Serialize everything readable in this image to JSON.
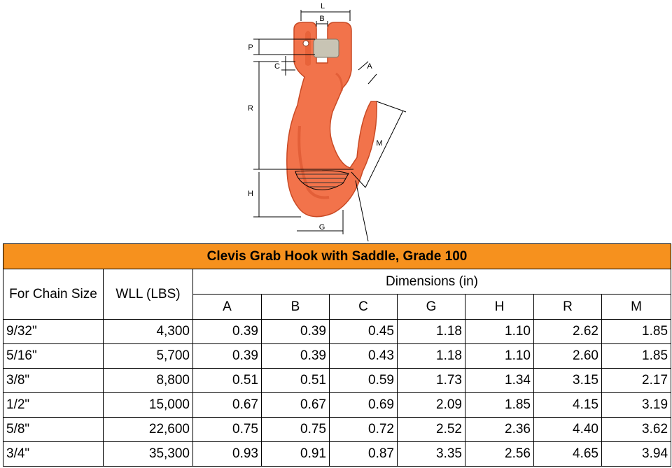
{
  "figure": {
    "alt_label": "Clevis grab hook diagram",
    "dimension_labels": {
      "L": "L",
      "B": "B",
      "P": "P",
      "C": "C",
      "A": "A",
      "R": "R",
      "M": "M",
      "H": "H",
      "G": "G"
    },
    "colors": {
      "hook": "#f2734b",
      "hook_shadow": "#d9512c",
      "pin": "#c8c4b4",
      "line": "#000000"
    }
  },
  "table": {
    "title": "Clevis Grab Hook with Saddle, Grade 100",
    "col_chain": "For Chain Size",
    "col_wll": "WLL (LBS)",
    "dimensions_header": "Dimensions (in)",
    "dim_columns": [
      "A",
      "B",
      "C",
      "G",
      "H",
      "R",
      "M"
    ],
    "rows": [
      {
        "size": "9/32\"",
        "wll": "4,300",
        "dims": [
          "0.39",
          "0.39",
          "0.45",
          "1.18",
          "1.10",
          "2.62",
          "1.85"
        ]
      },
      {
        "size": "5/16\"",
        "wll": "5,700",
        "dims": [
          "0.39",
          "0.39",
          "0.43",
          "1.18",
          "1.10",
          "2.60",
          "1.85"
        ]
      },
      {
        "size": "3/8\"",
        "wll": "8,800",
        "dims": [
          "0.51",
          "0.51",
          "0.59",
          "1.73",
          "1.34",
          "3.15",
          "2.17"
        ]
      },
      {
        "size": "1/2\"",
        "wll": "15,000",
        "dims": [
          "0.67",
          "0.67",
          "0.69",
          "2.09",
          "1.85",
          "4.15",
          "3.19"
        ]
      },
      {
        "size": "5/8\"",
        "wll": "22,600",
        "dims": [
          "0.75",
          "0.75",
          "0.72",
          "2.52",
          "2.36",
          "4.40",
          "3.62"
        ]
      },
      {
        "size": "3/4\"",
        "wll": "35,300",
        "dims": [
          "0.93",
          "0.91",
          "0.87",
          "3.35",
          "2.56",
          "4.65",
          "3.94"
        ]
      }
    ],
    "colors": {
      "title_bg": "#f6911e",
      "border": "#000000"
    }
  }
}
